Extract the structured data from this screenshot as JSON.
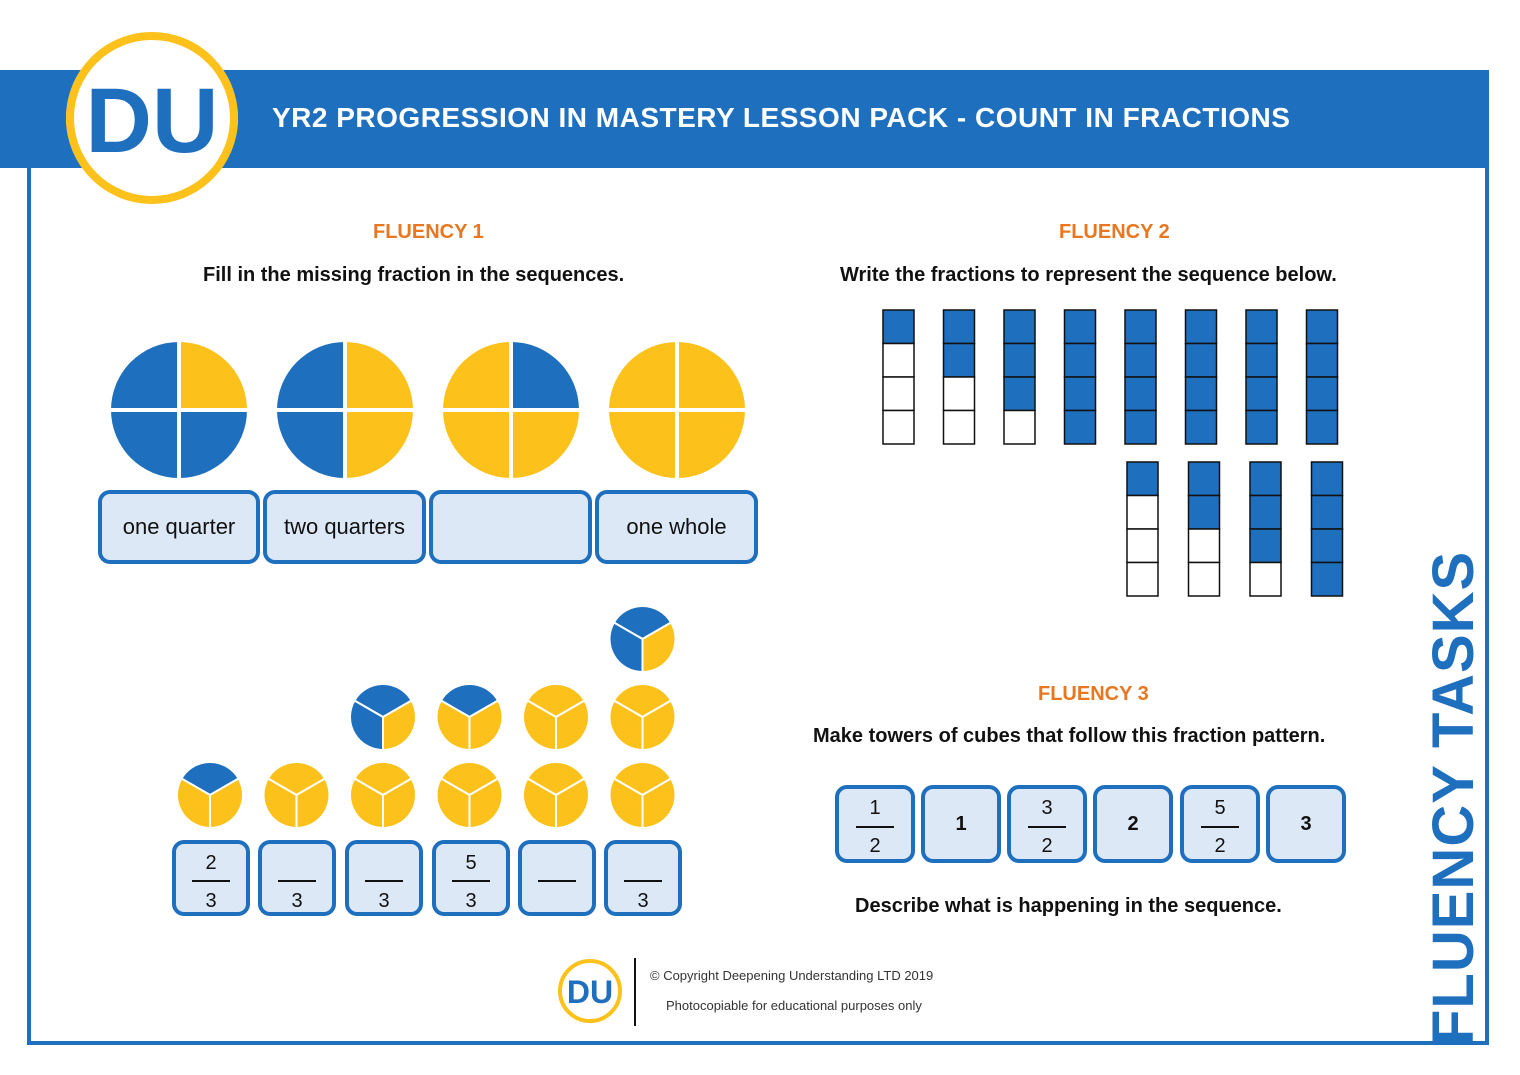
{
  "header": {
    "title": "YR2 PROGRESSION IN MASTERY LESSON PACK - COUNT IN FRACTIONS",
    "logo_text": "DU"
  },
  "fluency1": {
    "title": "FLUENCY 1",
    "instruction": "Fill in the missing fraction in the sequences.",
    "circles_blue_quarters": [
      3,
      2,
      1,
      0
    ],
    "labels": [
      "one quarter",
      "two quarters",
      "",
      "one whole"
    ],
    "thirds_sequence": [
      {
        "numerator": "2",
        "denominator": "3"
      },
      {
        "numerator": "",
        "denominator": "3"
      },
      {
        "numerator": "",
        "denominator": "3"
      },
      {
        "numerator": "5",
        "denominator": "3"
      },
      {
        "numerator": "",
        "denominator": ""
      },
      {
        "numerator": "",
        "denominator": "3"
      }
    ]
  },
  "fluency2": {
    "title": "FLUENCY 2",
    "instruction": "Write the fractions to represent the sequence below.",
    "towers_blue_of_four": [
      1,
      2,
      3,
      4,
      4,
      4,
      4,
      4,
      1,
      2,
      3,
      4
    ]
  },
  "fluency3": {
    "title": "FLUENCY 3",
    "instruction": "Make towers of cubes that follow this fraction pattern.",
    "pattern": [
      {
        "numerator": "1",
        "denominator": "2"
      },
      {
        "whole": "1"
      },
      {
        "numerator": "3",
        "denominator": "2"
      },
      {
        "whole": "2"
      },
      {
        "numerator": "5",
        "denominator": "2"
      },
      {
        "whole": "3"
      }
    ],
    "describe": "Describe what is happening in the sequence."
  },
  "footer": {
    "copyright": "© Copyright Deepening Understanding LTD 2019",
    "note": "Photocopiable for educational purposes only",
    "logo_text": "DU"
  },
  "side_label": "FLUENCY TASKS",
  "colors": {
    "blue": "#1f6fbf",
    "yellow": "#fcc21b",
    "orange": "#e8771f",
    "box_fill": "#dde8f6"
  }
}
